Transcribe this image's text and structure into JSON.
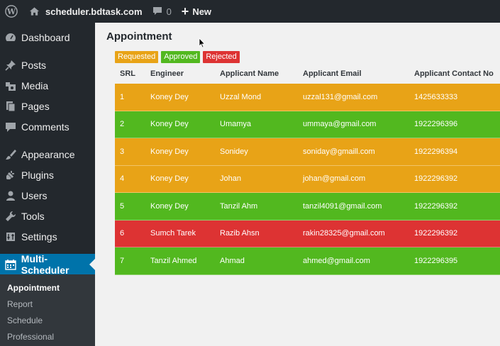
{
  "adminbar": {
    "site_name": "scheduler.bdtask.com",
    "comments_count": "0",
    "new_label": "New"
  },
  "sidebar": {
    "items": [
      {
        "label": "Dashboard",
        "icon": "dashboard-icon"
      },
      {
        "label": "Posts",
        "icon": "pin-icon"
      },
      {
        "label": "Media",
        "icon": "media-icon"
      },
      {
        "label": "Pages",
        "icon": "pages-icon"
      },
      {
        "label": "Comments",
        "icon": "comment-icon"
      },
      {
        "label": "Appearance",
        "icon": "brush-icon"
      },
      {
        "label": "Plugins",
        "icon": "plugin-icon"
      },
      {
        "label": "Users",
        "icon": "user-icon"
      },
      {
        "label": "Tools",
        "icon": "wrench-icon"
      },
      {
        "label": "Settings",
        "icon": "settings-icon"
      },
      {
        "label": "Multi-Scheduler",
        "icon": "calendar-icon"
      }
    ],
    "submenu": [
      "Appointment",
      "Report",
      "Schedule",
      "Professional"
    ]
  },
  "page": {
    "title": "Appointment",
    "legend": {
      "requested": "Requested",
      "approved": "Approved",
      "rejected": "Rejected"
    }
  },
  "table": {
    "headers": [
      "SRL",
      "Engineer",
      "Applicant Name",
      "Applicant Email",
      "Applicant Contact No"
    ],
    "rows": [
      {
        "status": "requested",
        "srl": "1",
        "engineer": "Koney Dey",
        "name": "Uzzal Mond",
        "email": "uzzal131@gmail.com",
        "contact": "1425633333"
      },
      {
        "status": "approved",
        "srl": "2",
        "engineer": "Koney Dey",
        "name": "Umamya",
        "email": "ummaya@gmail.com",
        "contact": "1922296396"
      },
      {
        "status": "requested",
        "srl": "3",
        "engineer": "Koney Dey",
        "name": "Sonidey",
        "email": "soniday@gmaill.com",
        "contact": "1922296394"
      },
      {
        "status": "requested",
        "srl": "4",
        "engineer": "Koney Dey",
        "name": "Johan",
        "email": "johan@gmail.com",
        "contact": "1922296392"
      },
      {
        "status": "approved",
        "srl": "5",
        "engineer": "Koney Dey",
        "name": "Tanzil Ahm",
        "email": "tanzil4091@gmail.com",
        "contact": "1922296392"
      },
      {
        "status": "rejected",
        "srl": "6",
        "engineer": "Sumch Tarek",
        "name": "Razib Ahsn",
        "email": "rakin28325@gmail.com",
        "contact": "1922296392"
      },
      {
        "status": "approved",
        "srl": "7",
        "engineer": "Tanzil Ahmed",
        "name": "Ahmad",
        "email": "ahmed@gmail.com",
        "contact": "1922296395"
      }
    ]
  }
}
